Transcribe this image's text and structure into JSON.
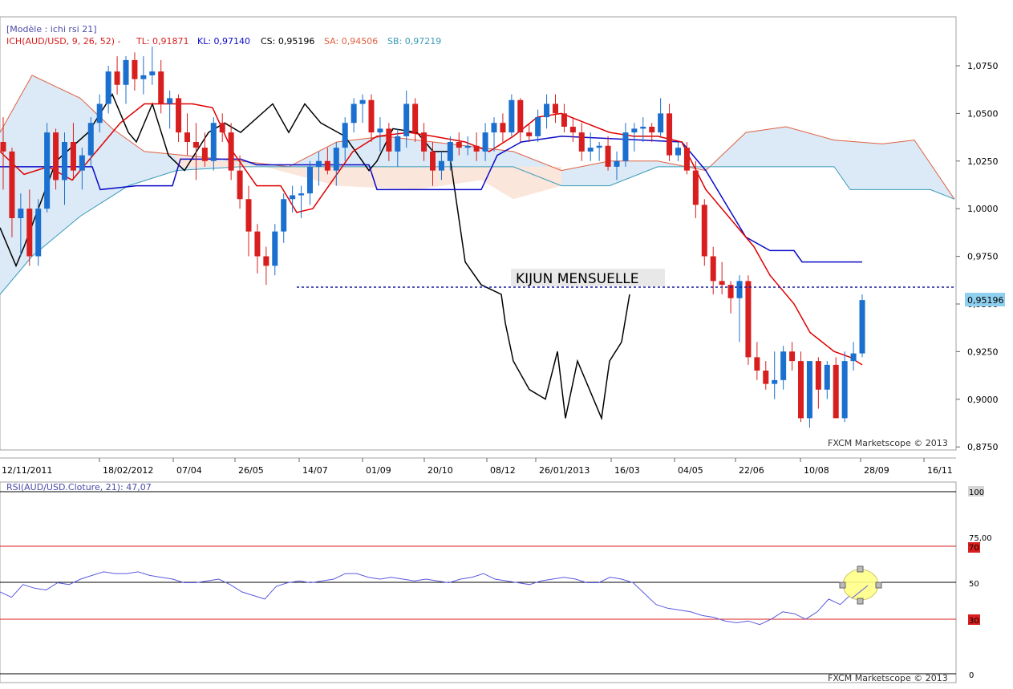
{
  "main_panel": {
    "model_label": "[Modèle : ichi rsi 21]",
    "indicator": {
      "name": "ICH(AUD/USD, 9, 26, 52) -",
      "tl": "TL: 0,91871",
      "kl": "KL: 0,97140",
      "cs": "CS: 0,95196",
      "sa": "SA: 0,94506",
      "sb": "SB: 0,97219"
    },
    "price_tag": "0,95196",
    "annotation": "KIJUN MENSUELLE",
    "watermark": "FXCM Marketscope © 2013",
    "y_ticks": [
      "1,0750",
      "1,0500",
      "1,0250",
      "1,0000",
      "0,9750",
      "0,9500",
      "0,9250",
      "0,9000",
      "0,8750"
    ],
    "x_ticks": [
      "12/11/2011",
      "18/02/2012",
      "07/04",
      "26/05",
      "14/07",
      "01/09",
      "20/10",
      "08/12",
      "26/01/2013",
      "16/03",
      "04/05",
      "22/06",
      "10/08",
      "28/09",
      "16/11"
    ]
  },
  "rsi_panel": {
    "label": "RSI(AUD/USD.Cloture, 21): 47,07",
    "y_ticks": [
      "100",
      "75,00",
      "70",
      "50",
      "30",
      "0"
    ],
    "watermark": "FXCM Marketscope © 2013"
  },
  "colors": {
    "bull": "#1a6fcf",
    "bear": "#d81e1e",
    "tenkan": "#e00000",
    "kijun": "#0a0ac8",
    "chikou": "#000000",
    "cloud_bull": "#dbeaf6",
    "cloud_bear": "#fbe6dc",
    "span_a": "#e06040",
    "span_b": "#3a9ab8",
    "rsi": "#5a5ae0",
    "rsi_highlight": "#ffff88"
  },
  "chart_data": [
    {
      "type": "candlestick",
      "title": "ICH(AUD/USD, 9, 26, 52)",
      "ylim": [
        0.875,
        1.085
      ],
      "x_tick_labels": [
        "12/11/2011",
        "18/02/2012",
        "07/04",
        "26/05",
        "14/07",
        "01/09",
        "20/10",
        "08/12",
        "26/01/2013",
        "16/03",
        "04/05",
        "22/06",
        "10/08",
        "28/09",
        "16/11"
      ],
      "candles": [
        [
          1.035,
          1.048,
          1.01,
          1.03
        ],
        [
          1.03,
          1.032,
          0.985,
          0.995
        ],
        [
          0.995,
          1.008,
          0.975,
          1.0
        ],
        [
          1.0,
          1.01,
          0.97,
          0.975
        ],
        [
          0.975,
          1.005,
          0.97,
          1.0
        ],
        [
          1.0,
          1.045,
          0.998,
          1.04
        ],
        [
          1.04,
          1.042,
          1.01,
          1.015
        ],
        [
          1.015,
          1.04,
          1.002,
          1.035
        ],
        [
          1.035,
          1.045,
          1.015,
          1.02
        ],
        [
          1.02,
          1.032,
          1.01,
          1.028
        ],
        [
          1.028,
          1.048,
          1.022,
          1.045
        ],
        [
          1.045,
          1.06,
          1.04,
          1.055
        ],
        [
          1.055,
          1.075,
          1.05,
          1.072
        ],
        [
          1.072,
          1.08,
          1.06,
          1.065
        ],
        [
          1.065,
          1.08,
          1.055,
          1.078
        ],
        [
          1.078,
          1.082,
          1.062,
          1.068
        ],
        [
          1.068,
          1.08,
          1.06,
          1.07
        ],
        [
          1.07,
          1.085,
          1.065,
          1.072
        ],
        [
          1.072,
          1.078,
          1.05,
          1.055
        ],
        [
          1.055,
          1.062,
          1.042,
          1.058
        ],
        [
          1.058,
          1.06,
          1.035,
          1.04
        ],
        [
          1.04,
          1.05,
          1.028,
          1.035
        ],
        [
          1.035,
          1.045,
          1.015,
          1.032
        ],
        [
          1.032,
          1.04,
          1.022,
          1.025
        ],
        [
          1.025,
          1.048,
          1.02,
          1.045
        ],
        [
          1.045,
          1.05,
          1.035,
          1.04
        ],
        [
          1.04,
          1.045,
          1.015,
          1.02
        ],
        [
          1.02,
          1.028,
          1.0,
          1.005
        ],
        [
          1.005,
          1.012,
          0.975,
          0.988
        ],
        [
          0.988,
          0.992,
          0.966,
          0.975
        ],
        [
          0.975,
          0.98,
          0.96,
          0.97
        ],
        [
          0.97,
          0.992,
          0.965,
          0.988
        ],
        [
          0.988,
          1.008,
          0.982,
          1.005
        ],
        [
          1.005,
          1.012,
          0.998,
          1.007
        ],
        [
          1.007,
          1.012,
          0.995,
          1.008
        ],
        [
          1.008,
          1.025,
          1.002,
          1.022
        ],
        [
          1.022,
          1.03,
          1.012,
          1.025
        ],
        [
          1.025,
          1.032,
          1.018,
          1.02
        ],
        [
          1.02,
          1.035,
          1.012,
          1.032
        ],
        [
          1.032,
          1.048,
          1.025,
          1.045
        ],
        [
          1.045,
          1.058,
          1.04,
          1.055
        ],
        [
          1.055,
          1.06,
          1.045,
          1.057
        ],
        [
          1.057,
          1.06,
          1.035,
          1.04
        ],
        [
          1.04,
          1.048,
          1.03,
          1.042
        ],
        [
          1.042,
          1.045,
          1.025,
          1.03
        ],
        [
          1.03,
          1.042,
          1.022,
          1.038
        ],
        [
          1.038,
          1.062,
          1.032,
          1.055
        ],
        [
          1.055,
          1.058,
          1.035,
          1.04
        ],
        [
          1.04,
          1.045,
          1.025,
          1.03
        ],
        [
          1.03,
          1.035,
          1.012,
          1.02
        ],
        [
          1.02,
          1.03,
          1.015,
          1.025
        ],
        [
          1.025,
          1.038,
          1.02,
          1.035
        ],
        [
          1.035,
          1.04,
          1.028,
          1.032
        ],
        [
          1.032,
          1.038,
          1.028,
          1.033
        ],
        [
          1.033,
          1.04,
          1.025,
          1.03
        ],
        [
          1.03,
          1.045,
          1.025,
          1.04
        ],
        [
          1.04,
          1.048,
          1.03,
          1.045
        ],
        [
          1.045,
          1.05,
          1.035,
          1.04
        ],
        [
          1.04,
          1.06,
          1.038,
          1.057
        ],
        [
          1.057,
          1.058,
          1.035,
          1.04
        ],
        [
          1.04,
          1.045,
          1.035,
          1.038
        ],
        [
          1.038,
          1.052,
          1.035,
          1.048
        ],
        [
          1.048,
          1.06,
          1.042,
          1.055
        ],
        [
          1.055,
          1.06,
          1.045,
          1.05
        ],
        [
          1.05,
          1.055,
          1.04,
          1.043
        ],
        [
          1.043,
          1.048,
          1.035,
          1.04
        ],
        [
          1.04,
          1.045,
          1.025,
          1.03
        ],
        [
          1.03,
          1.04,
          1.025,
          1.032
        ],
        [
          1.032,
          1.035,
          1.025,
          1.033
        ],
        [
          1.033,
          1.038,
          1.02,
          1.022
        ],
        [
          1.022,
          1.03,
          1.015,
          1.025
        ],
        [
          1.025,
          1.045,
          1.022,
          1.04
        ],
        [
          1.04,
          1.045,
          1.03,
          1.042
        ],
        [
          1.042,
          1.048,
          1.035,
          1.043
        ],
        [
          1.043,
          1.045,
          1.035,
          1.04
        ],
        [
          1.04,
          1.058,
          1.038,
          1.05
        ],
        [
          1.05,
          1.055,
          1.025,
          1.028
        ],
        [
          1.028,
          1.035,
          1.025,
          1.032
        ],
        [
          1.032,
          1.035,
          1.018,
          1.02
        ],
        [
          1.02,
          1.025,
          0.995,
          1.002
        ],
        [
          1.002,
          1.005,
          0.97,
          0.975
        ],
        [
          0.975,
          0.98,
          0.955,
          0.962
        ],
        [
          0.962,
          0.972,
          0.955,
          0.96
        ],
        [
          0.96,
          0.962,
          0.945,
          0.953
        ],
        [
          0.953,
          0.965,
          0.93,
          0.962
        ],
        [
          0.962,
          0.965,
          0.918,
          0.922
        ],
        [
          0.922,
          0.93,
          0.91,
          0.915
        ],
        [
          0.915,
          0.92,
          0.905,
          0.908
        ],
        [
          0.908,
          0.925,
          0.9,
          0.91
        ],
        [
          0.91,
          0.928,
          0.905,
          0.925
        ],
        [
          0.925,
          0.93,
          0.915,
          0.92
        ],
        [
          0.92,
          0.925,
          0.888,
          0.89
        ],
        [
          0.89,
          0.92,
          0.885,
          0.92
        ],
        [
          0.92,
          0.922,
          0.895,
          0.905
        ],
        [
          0.905,
          0.92,
          0.9,
          0.918
        ],
        [
          0.918,
          0.922,
          0.89,
          0.89
        ],
        [
          0.89,
          0.925,
          0.888,
          0.92
        ],
        [
          0.92,
          0.93,
          0.915,
          0.924
        ],
        [
          0.924,
          0.955,
          0.922,
          0.952
        ]
      ]
    },
    {
      "type": "line",
      "title": "RSI(AUD/USD.Cloture, 21)",
      "ylim": [
        0,
        100
      ],
      "y_tick_labels": [
        "100",
        "75,00",
        "70",
        "50",
        "30",
        "0"
      ]
    }
  ]
}
